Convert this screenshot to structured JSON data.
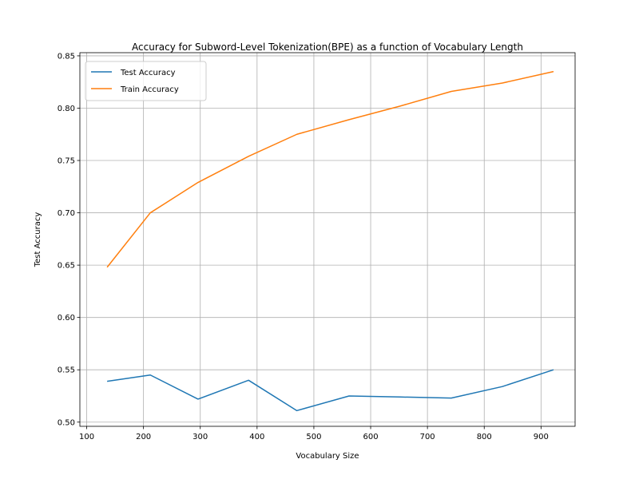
{
  "chart_data": {
    "type": "line",
    "title": "Accuracy for Subword-Level Tokenization(BPE) as a function of Vocabulary Length",
    "xlabel": "Vocabulary Size",
    "ylabel": "Test Accuracy",
    "xlim": [
      88,
      960
    ],
    "ylim": [
      0.496,
      0.853
    ],
    "xticks": [
      100,
      200,
      300,
      400,
      500,
      600,
      700,
      800,
      900
    ],
    "yticks": [
      0.5,
      0.55,
      0.6,
      0.65,
      0.7,
      0.75,
      0.8,
      0.85
    ],
    "grid": true,
    "legend_position": "top-left",
    "series": [
      {
        "name": "Test Accuracy",
        "color": "#1f77b4",
        "x": [
          136,
          212,
          296,
          385,
          470,
          562,
          652,
          742,
          832,
          922
        ],
        "y": [
          0.539,
          0.545,
          0.522,
          0.54,
          0.511,
          0.525,
          0.524,
          0.523,
          0.534,
          0.55
        ]
      },
      {
        "name": "Train Accuracy",
        "color": "#ff7f0e",
        "x": [
          136,
          212,
          296,
          385,
          470,
          562,
          652,
          742,
          832,
          922
        ],
        "y": [
          0.648,
          0.7,
          0.729,
          0.754,
          0.775,
          0.789,
          0.802,
          0.816,
          0.824,
          0.835
        ]
      }
    ]
  }
}
